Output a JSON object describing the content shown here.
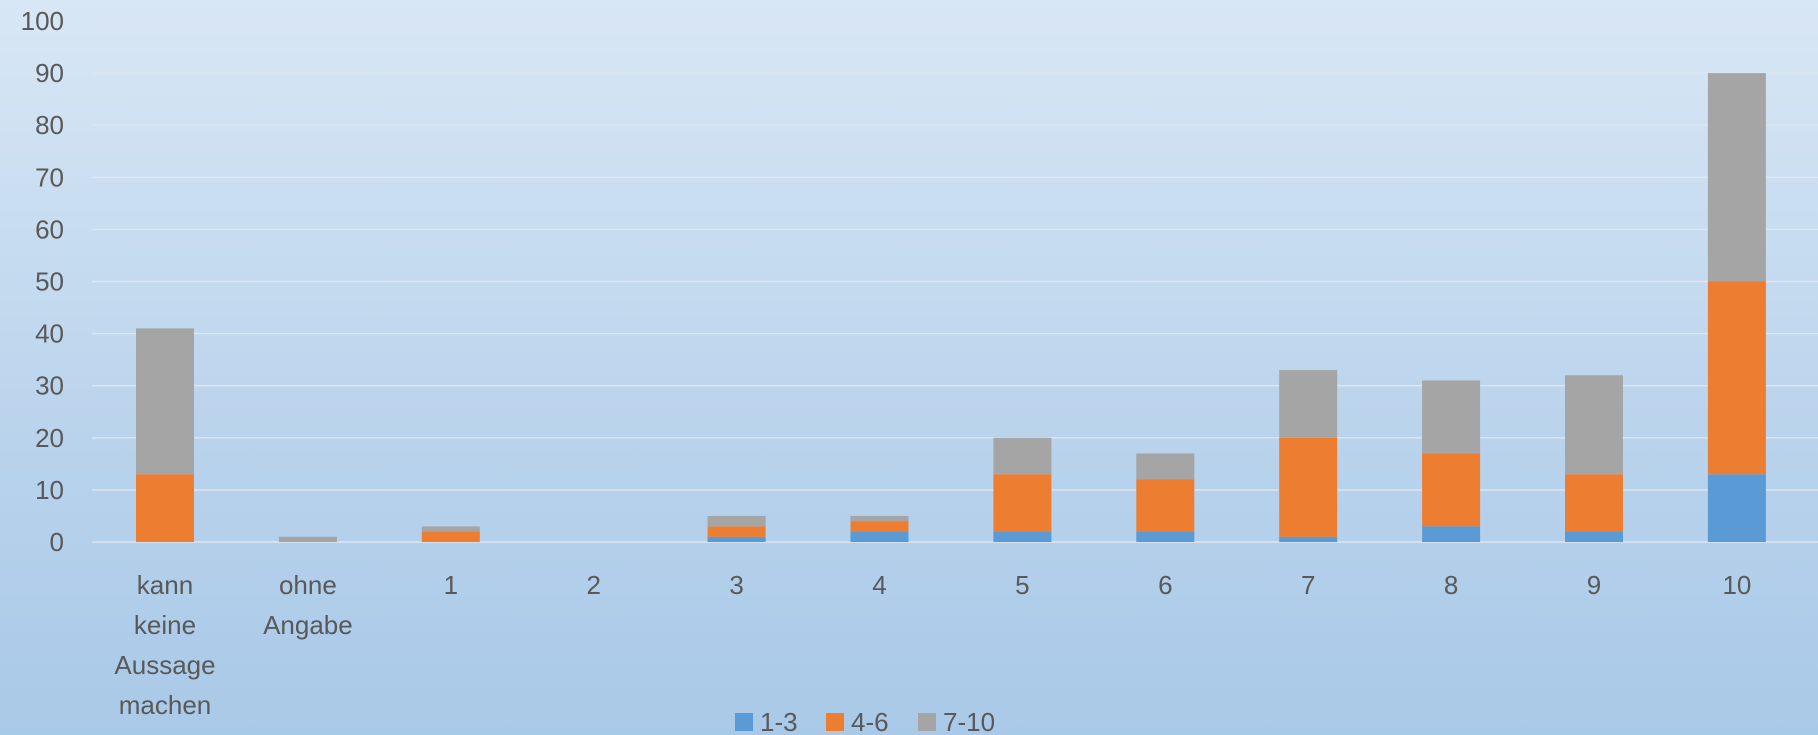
{
  "chart_data": {
    "type": "bar",
    "stacked": true,
    "categories": [
      [
        "kann",
        "keine",
        "Aussage",
        "machen"
      ],
      [
        "ohne",
        "Angabe"
      ],
      [
        "1"
      ],
      [
        "2"
      ],
      [
        "3"
      ],
      [
        "4"
      ],
      [
        "5"
      ],
      [
        "6"
      ],
      [
        "7"
      ],
      [
        "8"
      ],
      [
        "9"
      ],
      [
        "10"
      ]
    ],
    "series": [
      {
        "name": "1-3",
        "color": "#5b9bd5",
        "values": [
          0,
          0,
          0,
          0,
          1,
          2,
          2,
          2,
          1,
          3,
          2,
          13
        ]
      },
      {
        "name": "4-6",
        "color": "#ed7d31",
        "values": [
          13,
          0,
          2,
          0,
          2,
          2,
          11,
          10,
          19,
          14,
          11,
          37
        ]
      },
      {
        "name": "7-10",
        "color": "#a5a5a5",
        "values": [
          28,
          1,
          1,
          0,
          2,
          1,
          7,
          5,
          13,
          14,
          19,
          40
        ]
      }
    ],
    "ylim": [
      0,
      100
    ],
    "yticks": [
      "0",
      "10",
      "20",
      "30",
      "40",
      "50",
      "60",
      "70",
      "80",
      "90",
      "100"
    ],
    "grid": true,
    "legend_position": "bottom"
  }
}
